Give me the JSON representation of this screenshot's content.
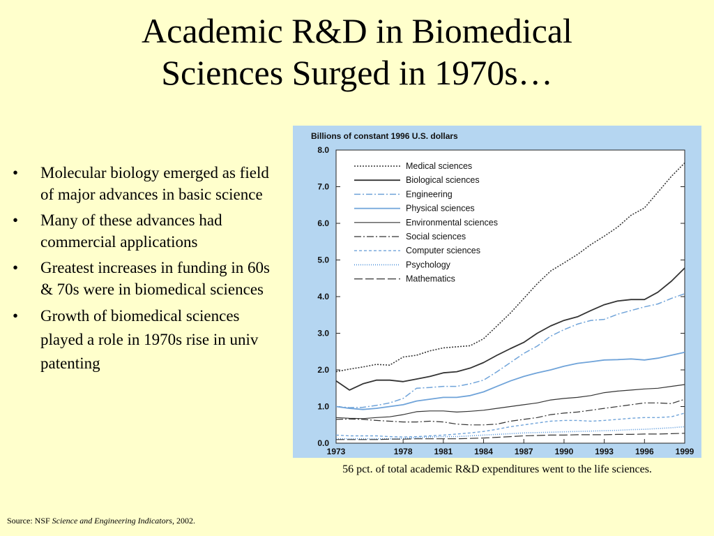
{
  "slide": {
    "title_line1": "Academic R&D in Biomedical",
    "title_line2": "Sciences Surged in 1970s…",
    "bullets": [
      "Molecular biology emerged as field of major advances in basic science",
      "Many of these advances had commercial applications",
      "Greatest increases in funding in 60s & 70s were in biomedical sciences",
      "Growth of biomedical sciences played a role in 1970s rise in univ patenting"
    ],
    "caption": "56 pct. of total academic R&D expenditures went to the life sciences.",
    "source_prefix": "Source: NSF ",
    "source_italic": "Science and Engineering Indicators",
    "source_suffix": ", 2002."
  },
  "chart_data": {
    "type": "line",
    "title": "Billions of constant 1996 U.S. dollars",
    "xlabel": "",
    "ylabel": "",
    "ylim": [
      0,
      8
    ],
    "xlim": [
      1973,
      1999
    ],
    "x_ticks": [
      "1973",
      "1978",
      "1981",
      "1984",
      "1987",
      "1990",
      "1993",
      "1996",
      "1999"
    ],
    "y_ticks": [
      "0.0",
      "1.0",
      "2.0",
      "3.0",
      "4.0",
      "5.0",
      "6.0",
      "7.0",
      "8.0"
    ],
    "legend_position": "top-left",
    "grid": false,
    "x": [
      1973,
      1974,
      1975,
      1976,
      1977,
      1978,
      1979,
      1980,
      1981,
      1982,
      1983,
      1984,
      1985,
      1986,
      1987,
      1988,
      1989,
      1990,
      1991,
      1992,
      1993,
      1994,
      1995,
      1996,
      1997,
      1998,
      1999
    ],
    "series": [
      {
        "name": "Medical sciences",
        "color": "#333333",
        "dash": "2,2",
        "width": 1.6,
        "values": [
          1.95,
          2.02,
          2.08,
          2.15,
          2.13,
          2.35,
          2.4,
          2.52,
          2.6,
          2.63,
          2.66,
          2.85,
          3.2,
          3.55,
          3.95,
          4.35,
          4.7,
          4.92,
          5.15,
          5.42,
          5.65,
          5.9,
          6.22,
          6.42,
          6.85,
          7.28,
          7.65
        ]
      },
      {
        "name": "Biological sciences",
        "color": "#333333",
        "dash": "",
        "width": 1.8,
        "values": [
          1.7,
          1.45,
          1.62,
          1.72,
          1.72,
          1.68,
          1.75,
          1.82,
          1.92,
          1.95,
          2.05,
          2.2,
          2.4,
          2.58,
          2.75,
          3.0,
          3.2,
          3.35,
          3.45,
          3.62,
          3.78,
          3.88,
          3.92,
          3.92,
          4.12,
          4.42,
          4.78
        ]
      },
      {
        "name": "Engineering",
        "color": "#6fa3d9",
        "dash": "9,3,2,3",
        "width": 1.5,
        "values": [
          1.0,
          0.97,
          0.98,
          1.03,
          1.1,
          1.22,
          1.5,
          1.52,
          1.55,
          1.55,
          1.62,
          1.72,
          1.95,
          2.2,
          2.45,
          2.65,
          2.92,
          3.1,
          3.25,
          3.35,
          3.38,
          3.52,
          3.62,
          3.72,
          3.8,
          3.95,
          4.08
        ]
      },
      {
        "name": "Physical sciences",
        "color": "#6fa3d9",
        "dash": "",
        "width": 1.8,
        "values": [
          1.0,
          0.95,
          0.92,
          0.95,
          1.0,
          1.05,
          1.15,
          1.2,
          1.25,
          1.25,
          1.3,
          1.4,
          1.55,
          1.7,
          1.82,
          1.92,
          2.0,
          2.1,
          2.18,
          2.22,
          2.27,
          2.28,
          2.3,
          2.27,
          2.32,
          2.4,
          2.48
        ]
      },
      {
        "name": "Environmental sciences",
        "color": "#333333",
        "dash": "",
        "width": 1.2,
        "values": [
          0.7,
          0.68,
          0.67,
          0.7,
          0.72,
          0.78,
          0.86,
          0.88,
          0.88,
          0.85,
          0.87,
          0.9,
          0.95,
          1.0,
          1.05,
          1.1,
          1.18,
          1.22,
          1.25,
          1.3,
          1.38,
          1.42,
          1.45,
          1.48,
          1.5,
          1.55,
          1.6
        ]
      },
      {
        "name": "Social sciences",
        "color": "#333333",
        "dash": "10,3,2,3",
        "width": 1.2,
        "values": [
          0.65,
          0.66,
          0.65,
          0.62,
          0.6,
          0.58,
          0.58,
          0.6,
          0.58,
          0.52,
          0.5,
          0.5,
          0.52,
          0.6,
          0.65,
          0.7,
          0.78,
          0.82,
          0.85,
          0.9,
          0.95,
          1.0,
          1.05,
          1.1,
          1.1,
          1.08,
          1.2
        ]
      },
      {
        "name": "Computer sciences",
        "color": "#6fa3d9",
        "dash": "4,3",
        "width": 1.4,
        "values": [
          0.22,
          0.2,
          0.2,
          0.2,
          0.18,
          0.17,
          0.18,
          0.2,
          0.22,
          0.25,
          0.28,
          0.32,
          0.38,
          0.45,
          0.5,
          0.55,
          0.6,
          0.62,
          0.62,
          0.6,
          0.62,
          0.65,
          0.68,
          0.7,
          0.7,
          0.72,
          0.82
        ]
      },
      {
        "name": "Psychology",
        "color": "#4a8fd9",
        "dash": "1,2",
        "width": 1.6,
        "values": [
          0.12,
          0.12,
          0.12,
          0.12,
          0.12,
          0.13,
          0.15,
          0.17,
          0.18,
          0.18,
          0.2,
          0.22,
          0.24,
          0.26,
          0.28,
          0.29,
          0.3,
          0.31,
          0.32,
          0.33,
          0.34,
          0.35,
          0.37,
          0.38,
          0.4,
          0.42,
          0.45
        ]
      },
      {
        "name": "Mathematics",
        "color": "#333333",
        "dash": "12,4",
        "width": 1.2,
        "values": [
          0.1,
          0.1,
          0.1,
          0.1,
          0.11,
          0.11,
          0.12,
          0.12,
          0.12,
          0.12,
          0.13,
          0.14,
          0.16,
          0.18,
          0.2,
          0.21,
          0.22,
          0.22,
          0.23,
          0.23,
          0.23,
          0.24,
          0.24,
          0.25,
          0.25,
          0.26,
          0.27
        ]
      }
    ]
  }
}
